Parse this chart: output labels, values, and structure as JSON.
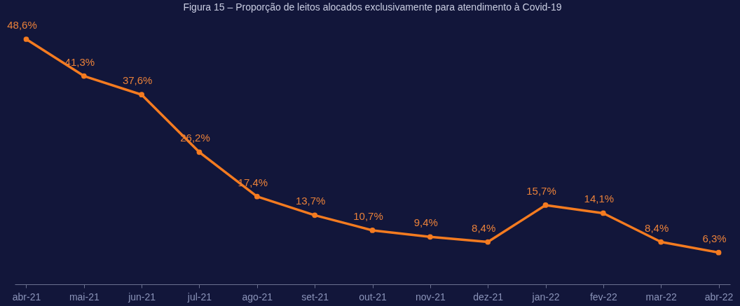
{
  "chart_data": {
    "type": "line",
    "title": "Figura 15 – Proporção de leitos alocados exclusivamente para atendimento à Covid-19",
    "categories": [
      "abr-21",
      "mai-21",
      "jun-21",
      "jul-21",
      "ago-21",
      "set-21",
      "out-21",
      "nov-21",
      "dez-21",
      "jan-22",
      "fev-22",
      "mar-22",
      "abr-22"
    ],
    "series": [
      {
        "color": "#f47b20",
        "values": [
          48.6,
          41.3,
          37.6,
          26.2,
          17.4,
          13.7,
          10.7,
          9.4,
          8.4,
          15.7,
          14.1,
          8.4,
          6.3
        ],
        "value_labels": [
          "48,6%",
          "41,3%",
          "37,6%",
          "26,2%",
          "17,4%",
          "13,7%",
          "10,7%",
          "9,4%",
          "8,4%",
          "15,7%",
          "14,1%",
          "8,4%",
          "6,3%"
        ]
      }
    ],
    "marker": "circle",
    "line_style": "solid",
    "grid": false,
    "tick_labels": "x"
  }
}
